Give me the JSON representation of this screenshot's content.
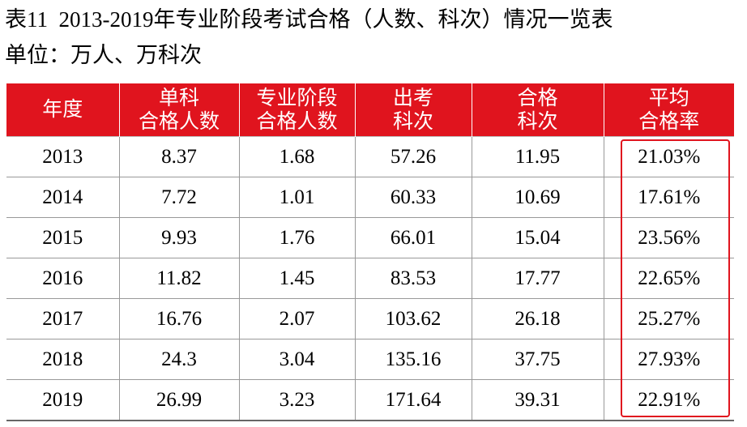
{
  "header": {
    "title": "表11  2013-2019年专业阶段考试合格（人数、科次）情况一览表",
    "subtitle": "单位：万人、万科次"
  },
  "table": {
    "columns": [
      [
        "年度"
      ],
      [
        "单科",
        "合格人数"
      ],
      [
        "专业阶段",
        "合格人数"
      ],
      [
        "出考",
        "科次"
      ],
      [
        "合格",
        "科次"
      ],
      [
        "平均",
        "合格率"
      ]
    ],
    "rows": [
      [
        "2013",
        "8.37",
        "1.68",
        "57.26",
        "11.95",
        "21.03%"
      ],
      [
        "2014",
        "7.72",
        "1.01",
        "60.33",
        "10.69",
        "17.61%"
      ],
      [
        "2015",
        "9.93",
        "1.76",
        "66.01",
        "15.04",
        "23.56%"
      ],
      [
        "2016",
        "11.82",
        "1.45",
        "83.53",
        "17.77",
        "22.65%"
      ],
      [
        "2017",
        "16.76",
        "2.07",
        "103.62",
        "26.18",
        "25.27%"
      ],
      [
        "2018",
        "24.3",
        "3.04",
        "135.16",
        "37.75",
        "27.93%"
      ],
      [
        "2019",
        "26.99",
        "3.23",
        "171.64",
        "39.31",
        "22.91%"
      ]
    ]
  }
}
